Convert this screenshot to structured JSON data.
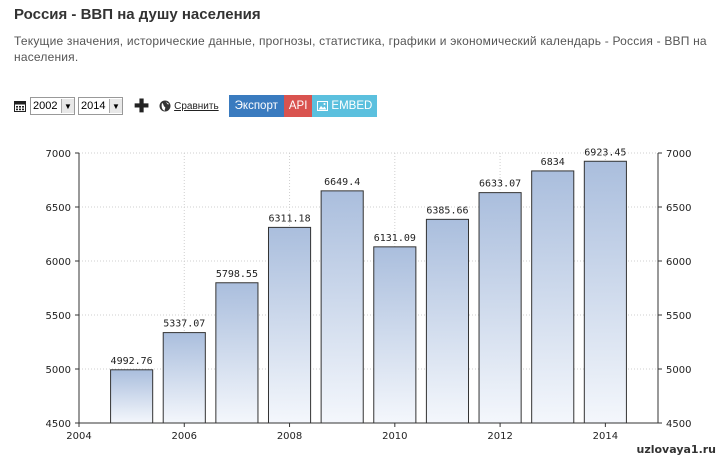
{
  "header": {
    "title": "Россия - ВВП на душу населения",
    "description_line1": "Текущие значения, исторические данные, прогнозы, статистика, графики и экономический календарь - Россия - ВВП на",
    "description_line2": "населения."
  },
  "toolbar": {
    "start_year": "2002",
    "end_year": "2014",
    "add_symbol": "✚",
    "compare_label": "Сравнить",
    "export_label": "Экспорт",
    "api_label": "API",
    "embed_label": "EMBED",
    "icons": [
      "calendar-icon",
      "plus-icon",
      "globe-icon",
      "image-icon"
    ],
    "colors": {
      "export": "#3a7bbf",
      "api": "#d9534f",
      "embed": "#5bc0de"
    }
  },
  "watermark": "uzlovaya1.ru",
  "chart_data": {
    "type": "bar",
    "categories": [
      "2005",
      "2006",
      "2007",
      "2008",
      "2009",
      "2010",
      "2011",
      "2012",
      "2013",
      "2014"
    ],
    "x": [
      2005,
      2006,
      2007,
      2008,
      2009,
      2010,
      2011,
      2012,
      2013,
      2014
    ],
    "values": [
      4992.76,
      5337.07,
      5798.55,
      6311.18,
      6649.4,
      6131.09,
      6385.66,
      6633.07,
      6834,
      6923.45
    ],
    "value_labels": [
      "4992.76",
      "5337.07",
      "5798.55",
      "6311.18",
      "6649.4",
      "6131.09",
      "6385.66",
      "6633.07",
      "6834",
      "6923.45"
    ],
    "title": "",
    "xlabel": "",
    "ylabel": "",
    "xlim": [
      2004,
      2015
    ],
    "ylim": [
      4500,
      7000
    ],
    "x_ticks": [
      "2004",
      "2006",
      "2008",
      "2010",
      "2012",
      "2014"
    ],
    "x_tick_values": [
      2004,
      2006,
      2008,
      2010,
      2012,
      2014
    ],
    "y_ticks": [
      "4500",
      "5000",
      "5500",
      "6000",
      "6500",
      "7000"
    ],
    "y_tick_values": [
      4500,
      5000,
      5500,
      6000,
      6500,
      7000
    ],
    "grid": true,
    "y_axis_both_sides": true,
    "bar_gradient": [
      "#aabedd",
      "#f4f7fc"
    ]
  }
}
